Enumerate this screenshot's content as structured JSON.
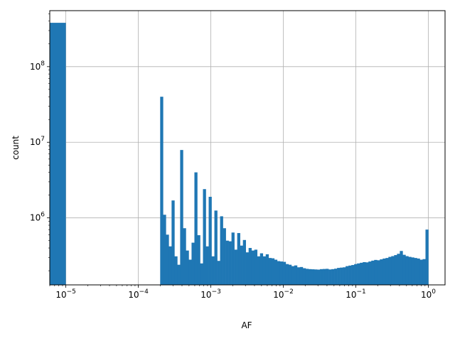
{
  "chart_data": {
    "type": "bar",
    "title": "",
    "xlabel": "AF",
    "ylabel": "count",
    "xscale": "log",
    "yscale": "log",
    "xlim": [
      6e-06,
      1.7
    ],
    "ylim": [
      130000,
      550000000
    ],
    "grid": true,
    "bar_color": "#1f77b4",
    "x_ticks": [
      {
        "value": 1e-05,
        "base": "10",
        "exp": "−5"
      },
      {
        "value": 0.0001,
        "base": "10",
        "exp": "−4"
      },
      {
        "value": 0.001,
        "base": "10",
        "exp": "−3"
      },
      {
        "value": 0.01,
        "base": "10",
        "exp": "−2"
      },
      {
        "value": 0.1,
        "base": "10",
        "exp": "−1"
      },
      {
        "value": 1,
        "base": "10",
        "exp": "0"
      }
    ],
    "y_ticks": [
      {
        "value": 1000000.0,
        "base": "10",
        "exp": "6"
      },
      {
        "value": 10000000.0,
        "base": "10",
        "exp": "7"
      },
      {
        "value": 100000000.0,
        "base": "10",
        "exp": "8"
      }
    ],
    "bars": [
      {
        "x0": 6e-06,
        "x1": 1e-05,
        "count": 380000000
      }
    ],
    "bin_width": 0.008,
    "counts": [
      40000000,
      1100000,
      600000,
      420000,
      1700000,
      310000,
      240000,
      7900000,
      730000,
      370000,
      280000,
      470000,
      4000000,
      590000,
      250000,
      2400000,
      420000,
      1900000,
      310000,
      1250000,
      270000,
      1050000,
      730000,
      500000,
      490000,
      640000,
      380000,
      630000,
      430000,
      510000,
      350000,
      400000,
      370000,
      380000,
      310000,
      340000,
      310000,
      330000,
      295000,
      292000,
      280000,
      268000,
      265000,
      262000,
      245000,
      240000,
      230000,
      235000,
      222000,
      224000,
      216000,
      212000,
      210000,
      209000,
      208000,
      207000,
      210000,
      211000,
      212000,
      208000,
      210000,
      213000,
      218000,
      220000,
      222000,
      230000,
      234000,
      238000,
      245000,
      250000,
      255000,
      260000,
      258000,
      265000,
      272000,
      278000,
      275000,
      283000,
      290000,
      295000,
      305000,
      312000,
      322000,
      335000,
      365000,
      325000,
      312000,
      305000,
      300000,
      295000,
      290000,
      280000,
      285000,
      700000
    ]
  }
}
